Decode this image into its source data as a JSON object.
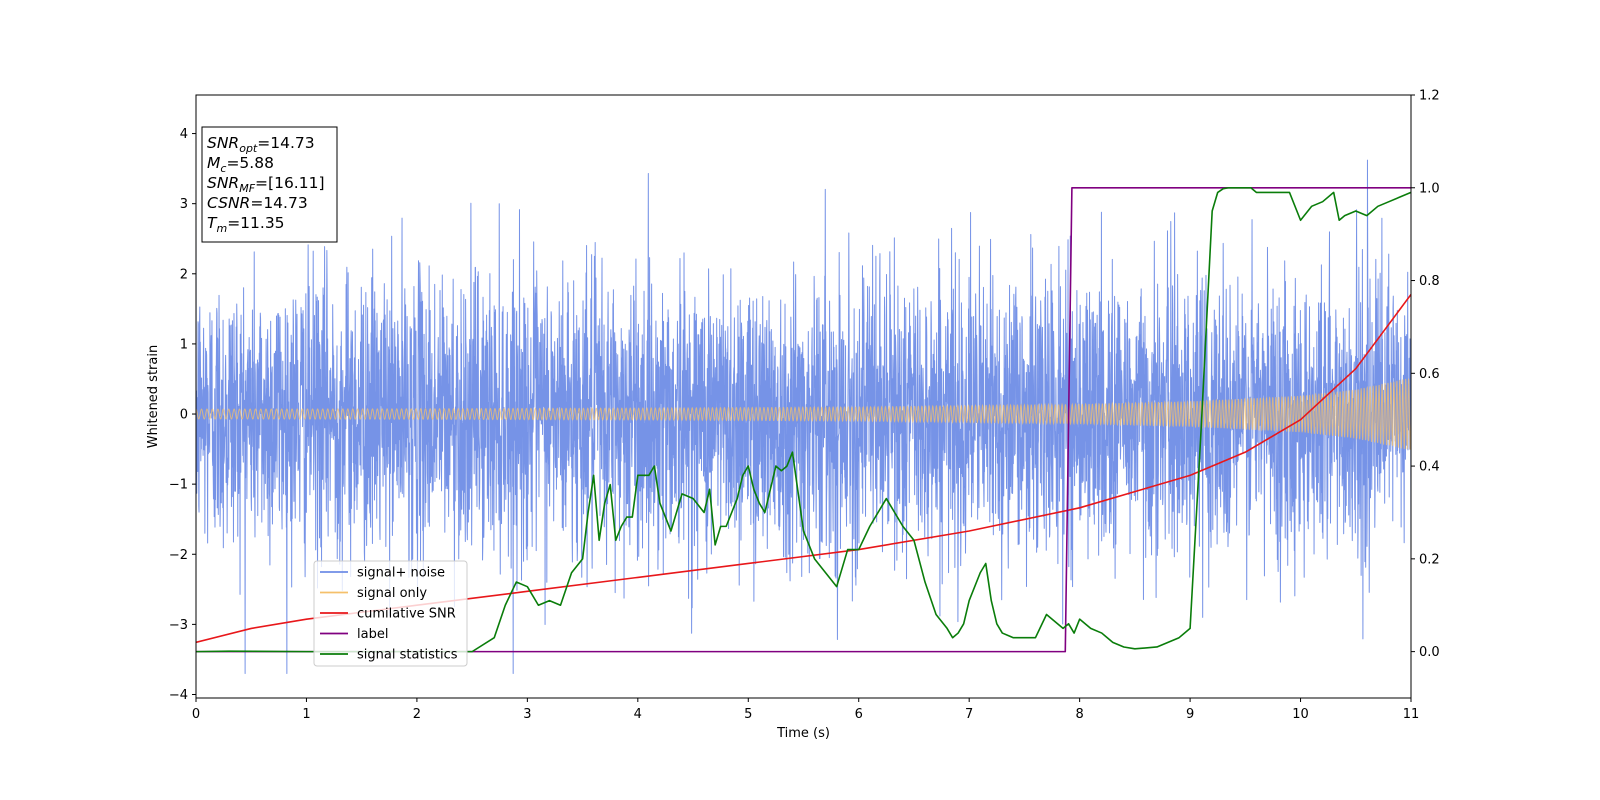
{
  "chart_data": {
    "type": "line",
    "xlabel": "Time (s)",
    "ylabel": "Whitened strain",
    "xlim": [
      0,
      11
    ],
    "ylim": [
      -4.05,
      4.55
    ],
    "y2lim": [
      -0.1,
      1.2
    ],
    "xticks": [
      0,
      1,
      2,
      3,
      4,
      5,
      6,
      7,
      8,
      9,
      10,
      11
    ],
    "yticks": [
      -4,
      -3,
      -2,
      -1,
      0,
      1,
      2,
      3,
      4
    ],
    "y2ticks": [
      0.0,
      0.2,
      0.4,
      0.6,
      0.8,
      1.0,
      1.2
    ],
    "grid": false,
    "legend_position": "lower-left",
    "info_box": {
      "lines": [
        {
          "base": "SNR",
          "sub": "opt",
          "value": "=14.73"
        },
        {
          "base": "M",
          "sub": "c",
          "value": "=5.88"
        },
        {
          "base": "SNR",
          "sub": "MF",
          "value": "=[16.11]"
        },
        {
          "base": "CSNR",
          "sub": "",
          "value": "=14.73"
        },
        {
          "base": "T",
          "sub": "m",
          "value": "=11.35"
        }
      ]
    },
    "series": [
      {
        "name": "signal+ noise",
        "color": "#6f8de6",
        "axis": "left",
        "kind": "noisy-strain",
        "spread_std": 1.0,
        "range": [
          -3.7,
          3.8
        ]
      },
      {
        "name": "signal only",
        "color": "#f5c06b",
        "axis": "left",
        "kind": "chirp",
        "amplitude_x": [
          0,
          2,
          4,
          6,
          8,
          9,
          10,
          10.5,
          11
        ],
        "amplitude": [
          0.07,
          0.075,
          0.085,
          0.1,
          0.14,
          0.18,
          0.26,
          0.35,
          0.52
        ]
      },
      {
        "name": "cumilative SNR",
        "color": "#e8171a",
        "axis": "right",
        "x": [
          0,
          0.5,
          1,
          2,
          3,
          4,
          5,
          6,
          7,
          8,
          9,
          9.5,
          10,
          10.5,
          11
        ],
        "y": [
          0.02,
          0.05,
          0.07,
          0.1,
          0.13,
          0.16,
          0.19,
          0.22,
          0.26,
          0.31,
          0.38,
          0.43,
          0.5,
          0.61,
          0.77
        ]
      },
      {
        "name": "label",
        "color": "#800080",
        "axis": "right",
        "x": [
          0,
          7.87,
          7.93,
          11
        ],
        "y": [
          0,
          0,
          1,
          1
        ]
      },
      {
        "name": "signal statistics",
        "color": "#0a7d0a",
        "axis": "right",
        "x": [
          0,
          0.3,
          1,
          2,
          2.5,
          2.7,
          2.8,
          2.9,
          3.0,
          3.1,
          3.2,
          3.3,
          3.4,
          3.5,
          3.55,
          3.6,
          3.65,
          3.7,
          3.75,
          3.8,
          3.85,
          3.9,
          3.95,
          4.0,
          4.05,
          4.1,
          4.15,
          4.2,
          4.3,
          4.4,
          4.5,
          4.6,
          4.65,
          4.7,
          4.75,
          4.8,
          4.9,
          4.95,
          5.0,
          5.05,
          5.1,
          5.15,
          5.2,
          5.25,
          5.3,
          5.35,
          5.4,
          5.5,
          5.6,
          5.7,
          5.8,
          5.9,
          6.0,
          6.1,
          6.2,
          6.25,
          6.3,
          6.35,
          6.4,
          6.5,
          6.6,
          6.7,
          6.8,
          6.85,
          6.9,
          6.95,
          7.0,
          7.1,
          7.15,
          7.2,
          7.25,
          7.3,
          7.4,
          7.5,
          7.6,
          7.7,
          7.8,
          7.85,
          7.9,
          7.95,
          8.0,
          8.1,
          8.2,
          8.3,
          8.4,
          8.5,
          8.7,
          8.8,
          8.9,
          9.0,
          9.1,
          9.2,
          9.25,
          9.3,
          9.35,
          9.4,
          9.45,
          9.5,
          9.55,
          9.6,
          9.7,
          9.8,
          9.9,
          10.0,
          10.1,
          10.2,
          10.3,
          10.35,
          10.4,
          10.5,
          10.6,
          10.7,
          10.8,
          10.9,
          11.0
        ],
        "y": [
          0.0,
          0.001,
          0.0,
          0.0,
          0.0,
          0.03,
          0.1,
          0.15,
          0.14,
          0.1,
          0.11,
          0.1,
          0.17,
          0.2,
          0.3,
          0.38,
          0.24,
          0.32,
          0.36,
          0.24,
          0.27,
          0.29,
          0.29,
          0.38,
          0.38,
          0.38,
          0.4,
          0.32,
          0.26,
          0.34,
          0.33,
          0.3,
          0.35,
          0.23,
          0.27,
          0.27,
          0.33,
          0.38,
          0.4,
          0.35,
          0.32,
          0.3,
          0.35,
          0.4,
          0.39,
          0.4,
          0.43,
          0.26,
          0.2,
          0.17,
          0.14,
          0.22,
          0.22,
          0.27,
          0.31,
          0.33,
          0.31,
          0.29,
          0.27,
          0.24,
          0.15,
          0.08,
          0.05,
          0.03,
          0.04,
          0.06,
          0.11,
          0.17,
          0.19,
          0.11,
          0.06,
          0.04,
          0.03,
          0.03,
          0.03,
          0.08,
          0.06,
          0.05,
          0.06,
          0.04,
          0.07,
          0.05,
          0.04,
          0.02,
          0.01,
          0.006,
          0.01,
          0.02,
          0.03,
          0.05,
          0.48,
          0.95,
          0.99,
          0.998,
          1.0,
          1.0,
          1.0,
          1.0,
          1.0,
          0.99,
          0.99,
          0.99,
          0.99,
          0.93,
          0.96,
          0.97,
          0.99,
          0.93,
          0.94,
          0.95,
          0.94,
          0.96,
          0.97,
          0.98,
          0.99
        ]
      }
    ]
  }
}
